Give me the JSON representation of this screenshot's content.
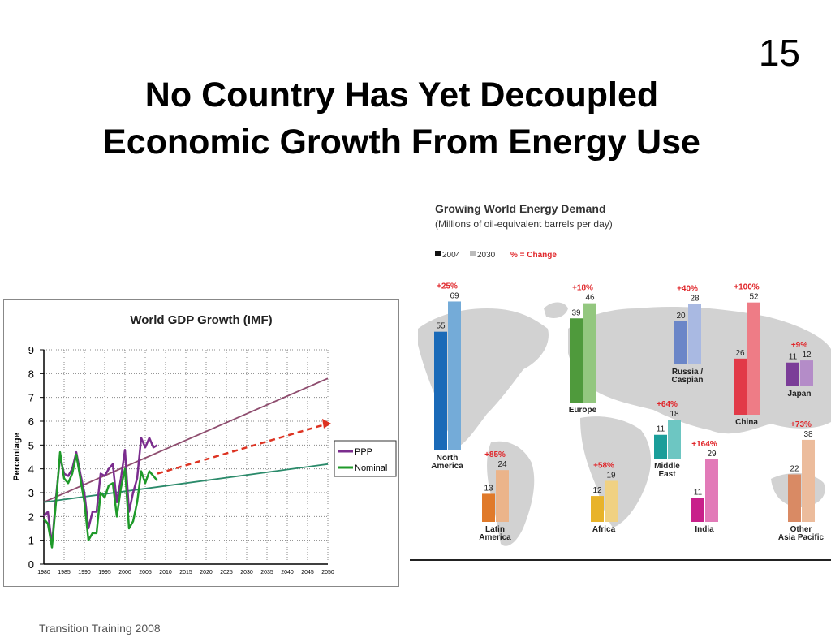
{
  "slide_number": "15",
  "title_line1": "No Country Has Yet Decoupled",
  "title_line2": "Economic Growth From Energy Use",
  "footer": "Transition Training 2008",
  "chart_data": [
    {
      "type": "line",
      "title": "World GDP Growth (IMF)",
      "ylabel": "Percentage",
      "xlabel": "",
      "ylim": [
        0,
        9
      ],
      "xlim": [
        1980,
        2050
      ],
      "grid": true,
      "legend_position": "right",
      "y_ticks": [
        "0",
        "1",
        "2",
        "3",
        "4",
        "5",
        "6",
        "7",
        "8",
        "9"
      ],
      "x_ticks": [
        "1980",
        "1985",
        "1990",
        "1995",
        "2000",
        "2005",
        "2010",
        "2015",
        "2020",
        "2025",
        "2030",
        "2035",
        "2040",
        "2045",
        "2050"
      ],
      "series": [
        {
          "name": "PPP",
          "color": "#7b2d8e",
          "x": [
            1980,
            1981,
            1982,
            1983,
            1984,
            1985,
            1986,
            1987,
            1988,
            1989,
            1990,
            1991,
            1992,
            1993,
            1994,
            1995,
            1996,
            1997,
            1998,
            1999,
            2000,
            2001,
            2002,
            2003,
            2004,
            2005,
            2006,
            2007,
            2008
          ],
          "values": [
            2.0,
            2.2,
            0.8,
            2.8,
            4.5,
            3.8,
            3.7,
            4.0,
            4.7,
            3.8,
            3.0,
            1.5,
            2.2,
            2.2,
            3.8,
            3.7,
            4.0,
            4.2,
            2.6,
            3.6,
            4.8,
            2.2,
            3.0,
            3.6,
            5.3,
            4.9,
            5.3,
            4.9,
            5.0
          ]
        },
        {
          "name": "Nominal",
          "color": "#1f9a2a",
          "x": [
            1980,
            1981,
            1982,
            1983,
            1984,
            1985,
            1986,
            1987,
            1988,
            1989,
            1990,
            1991,
            1992,
            1993,
            1994,
            1995,
            1996,
            1997,
            1998,
            1999,
            2000,
            2001,
            2002,
            2003,
            2004,
            2005,
            2006,
            2007,
            2008
          ],
          "values": [
            1.9,
            1.7,
            0.7,
            2.6,
            4.7,
            3.6,
            3.4,
            3.8,
            4.6,
            3.6,
            2.6,
            1.0,
            1.3,
            1.3,
            3.0,
            2.8,
            3.3,
            3.4,
            2.0,
            3.2,
            4.0,
            1.5,
            1.8,
            2.6,
            3.9,
            3.4,
            3.9,
            3.7,
            3.5
          ]
        }
      ],
      "trend_lines": [
        {
          "color": "#8e4c6e",
          "x": [
            1980,
            2050
          ],
          "values": [
            2.6,
            7.8
          ]
        },
        {
          "color": "#2a8a6a",
          "x": [
            1980,
            2050
          ],
          "values": [
            2.6,
            4.2
          ]
        },
        {
          "color": "#dd3322",
          "x": [
            2008,
            2050
          ],
          "values": [
            3.8,
            5.9
          ]
        }
      ]
    },
    {
      "type": "bar",
      "title": "Growing World Energy Demand",
      "subtitle": "(Millions of oil-equivalent barrels per day)",
      "legend": {
        "year1": "2004",
        "year2": "2030",
        "change": "% = Change"
      },
      "series": [
        {
          "name": "2004"
        },
        {
          "name": "2030"
        }
      ],
      "categories": [
        {
          "name": "North America",
          "label_lines": [
            "North",
            "America"
          ],
          "v2004": 55,
          "v2030": 69,
          "change": "+25%",
          "c1": "#1a6ab8",
          "c2": "#74abd8"
        },
        {
          "name": "Europe",
          "label_lines": [
            "Europe"
          ],
          "v2004": 39,
          "v2030": 46,
          "change": "+18%",
          "c1": "#4f9a3c",
          "c2": "#93c77f"
        },
        {
          "name": "Russia / Caspian",
          "label_lines": [
            "Russia /",
            "Caspian"
          ],
          "v2004": 20,
          "v2030": 28,
          "change": "+40%",
          "c1": "#6b86c8",
          "c2": "#a9b9e2"
        },
        {
          "name": "China",
          "label_lines": [
            "China"
          ],
          "v2004": 26,
          "v2030": 52,
          "change": "+100%",
          "c1": "#e23a48",
          "c2": "#ee7c86"
        },
        {
          "name": "Japan",
          "label_lines": [
            "Japan"
          ],
          "v2004": 11,
          "v2030": 12,
          "change": "+9%",
          "c1": "#7b3d98",
          "c2": "#b48cc8"
        },
        {
          "name": "Middle East",
          "label_lines": [
            "Middle",
            "East"
          ],
          "v2004": 11,
          "v2030": 18,
          "change": "+64%",
          "c1": "#1a9e9a",
          "c2": "#6dc6c2"
        },
        {
          "name": "Latin America",
          "label_lines": [
            "Latin",
            "America"
          ],
          "v2004": 13,
          "v2030": 24,
          "change": "+85%",
          "c1": "#e07a2a",
          "c2": "#ebb48a"
        },
        {
          "name": "Africa",
          "label_lines": [
            "Africa"
          ],
          "v2004": 12,
          "v2030": 19,
          "change": "+58%",
          "c1": "#e8b32a",
          "c2": "#f0d182"
        },
        {
          "name": "India",
          "label_lines": [
            "India"
          ],
          "v2004": 11,
          "v2030": 29,
          "change": "+164%",
          "c1": "#c8208a",
          "c2": "#e27ab8"
        },
        {
          "name": "Other Asia Pacific",
          "label_lines": [
            "Other",
            "Asia Pacific"
          ],
          "v2004": 22,
          "v2030": 38,
          "change": "+73%",
          "c1": "#d98a64",
          "c2": "#ecbc9c"
        }
      ]
    }
  ]
}
